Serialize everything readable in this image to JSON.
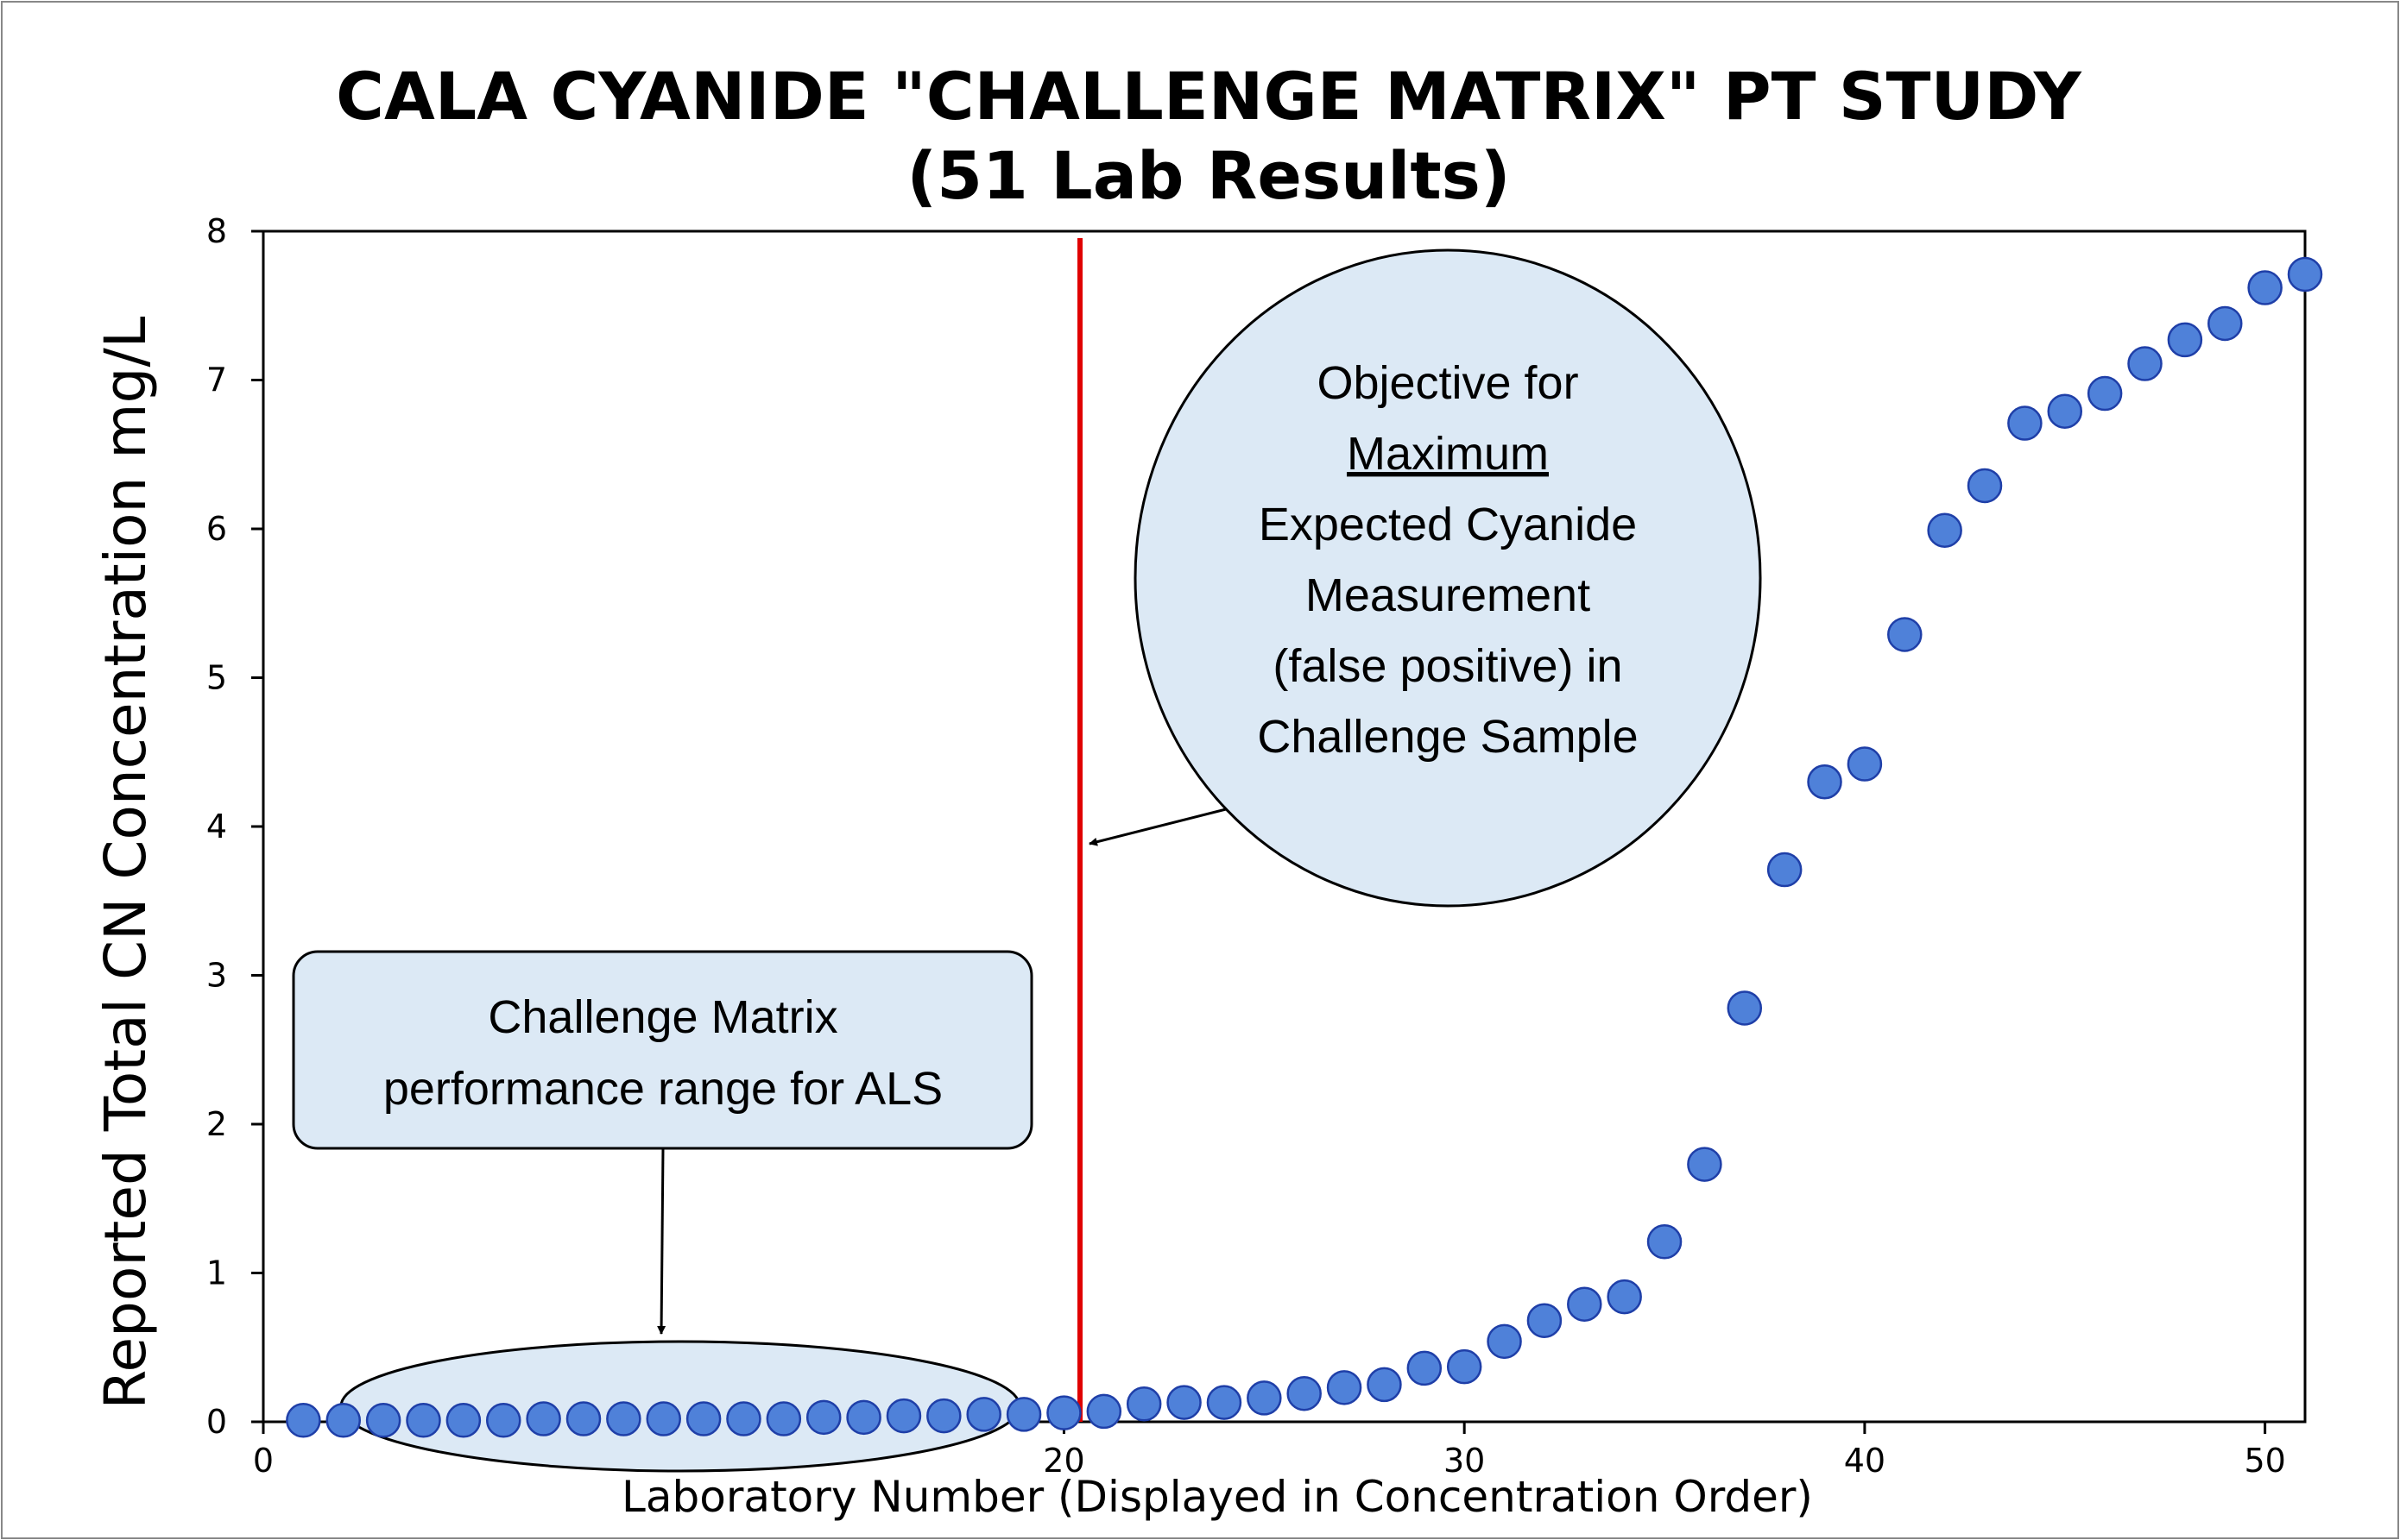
{
  "chart_data": {
    "type": "scatter",
    "title": "CALA CYANIDE \"CHALLENGE MATRIX\" PT STUDY",
    "subtitle": "(51 Lab Results)",
    "xlabel": "Laboratory Number (Displayed in Concentration Order)",
    "ylabel": "Reported Total CN Concentration mg/L",
    "xlim": [
      0,
      51
    ],
    "ylim": [
      0,
      8
    ],
    "xticks": [
      0,
      10,
      20,
      30,
      40,
      50
    ],
    "yticks": [
      0,
      1,
      2,
      3,
      4,
      5,
      6,
      7,
      8
    ],
    "grid": false,
    "marker_color": "#4f81d9",
    "marker_edge": "#1f3fa8",
    "points": [
      {
        "x": 1,
        "y": 0.01
      },
      {
        "x": 2,
        "y": 0.01
      },
      {
        "x": 3,
        "y": 0.01
      },
      {
        "x": 4,
        "y": 0.01
      },
      {
        "x": 5,
        "y": 0.01
      },
      {
        "x": 6,
        "y": 0.01
      },
      {
        "x": 7,
        "y": 0.02
      },
      {
        "x": 8,
        "y": 0.02
      },
      {
        "x": 9,
        "y": 0.02
      },
      {
        "x": 10,
        "y": 0.02
      },
      {
        "x": 11,
        "y": 0.02
      },
      {
        "x": 12,
        "y": 0.02
      },
      {
        "x": 13,
        "y": 0.02
      },
      {
        "x": 14,
        "y": 0.03
      },
      {
        "x": 15,
        "y": 0.03
      },
      {
        "x": 16,
        "y": 0.04
      },
      {
        "x": 17,
        "y": 0.04
      },
      {
        "x": 18,
        "y": 0.05
      },
      {
        "x": 19,
        "y": 0.05
      },
      {
        "x": 20,
        "y": 0.06
      },
      {
        "x": 21,
        "y": 0.07
      },
      {
        "x": 22,
        "y": 0.12
      },
      {
        "x": 23,
        "y": 0.13
      },
      {
        "x": 24,
        "y": 0.13
      },
      {
        "x": 25,
        "y": 0.16
      },
      {
        "x": 26,
        "y": 0.19
      },
      {
        "x": 27,
        "y": 0.23
      },
      {
        "x": 28,
        "y": 0.25
      },
      {
        "x": 29,
        "y": 0.36
      },
      {
        "x": 30,
        "y": 0.37
      },
      {
        "x": 31,
        "y": 0.54
      },
      {
        "x": 32,
        "y": 0.68
      },
      {
        "x": 33,
        "y": 0.79
      },
      {
        "x": 34,
        "y": 0.84
      },
      {
        "x": 35,
        "y": 1.21
      },
      {
        "x": 36,
        "y": 1.73
      },
      {
        "x": 37,
        "y": 2.78
      },
      {
        "x": 38,
        "y": 3.71
      },
      {
        "x": 39,
        "y": 4.3
      },
      {
        "x": 40,
        "y": 4.42
      },
      {
        "x": 41,
        "y": 5.29
      },
      {
        "x": 42,
        "y": 5.99
      },
      {
        "x": 43,
        "y": 6.29
      },
      {
        "x": 44,
        "y": 6.71
      },
      {
        "x": 45,
        "y": 6.79
      },
      {
        "x": 46,
        "y": 6.91
      },
      {
        "x": 47,
        "y": 7.11
      },
      {
        "x": 48,
        "y": 7.27
      },
      {
        "x": 49,
        "y": 7.38
      },
      {
        "x": 50,
        "y": 7.62
      },
      {
        "x": 51,
        "y": 7.71
      }
    ],
    "reference_line": {
      "x": 20.4,
      "color": "#e00000"
    },
    "annotations": {
      "objective_lines": [
        "Objective for",
        "Maximum",
        "Expected Cyanide",
        "Measurement",
        "(false positive) in",
        "Challenge Sample"
      ],
      "als_lines": [
        "Challenge Matrix",
        "performance range for ALS"
      ],
      "bubble_fill": "#dce9f5"
    }
  }
}
